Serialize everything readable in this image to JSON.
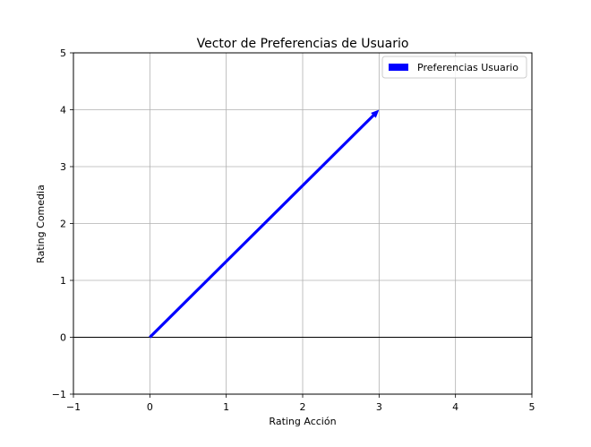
{
  "chart_data": {
    "type": "quiver",
    "title": "Vector de Preferencias de Usuario",
    "xlabel": "Rating Acción",
    "ylabel": "Rating Comedia",
    "xlim": [
      -1,
      5
    ],
    "ylim": [
      -1,
      5
    ],
    "xticks": [
      -1,
      0,
      1,
      2,
      3,
      4,
      5
    ],
    "yticks": [
      -1,
      0,
      1,
      2,
      3,
      4,
      5
    ],
    "grid": true,
    "legend_position": "upper-right",
    "vectors": [
      {
        "name": "Preferencias Usuario",
        "origin": [
          0,
          0
        ],
        "components": [
          3,
          4
        ],
        "color": "#0000ff"
      }
    ],
    "reference_lines": [
      {
        "axis": "y",
        "value": 0,
        "color": "#000000"
      }
    ]
  }
}
